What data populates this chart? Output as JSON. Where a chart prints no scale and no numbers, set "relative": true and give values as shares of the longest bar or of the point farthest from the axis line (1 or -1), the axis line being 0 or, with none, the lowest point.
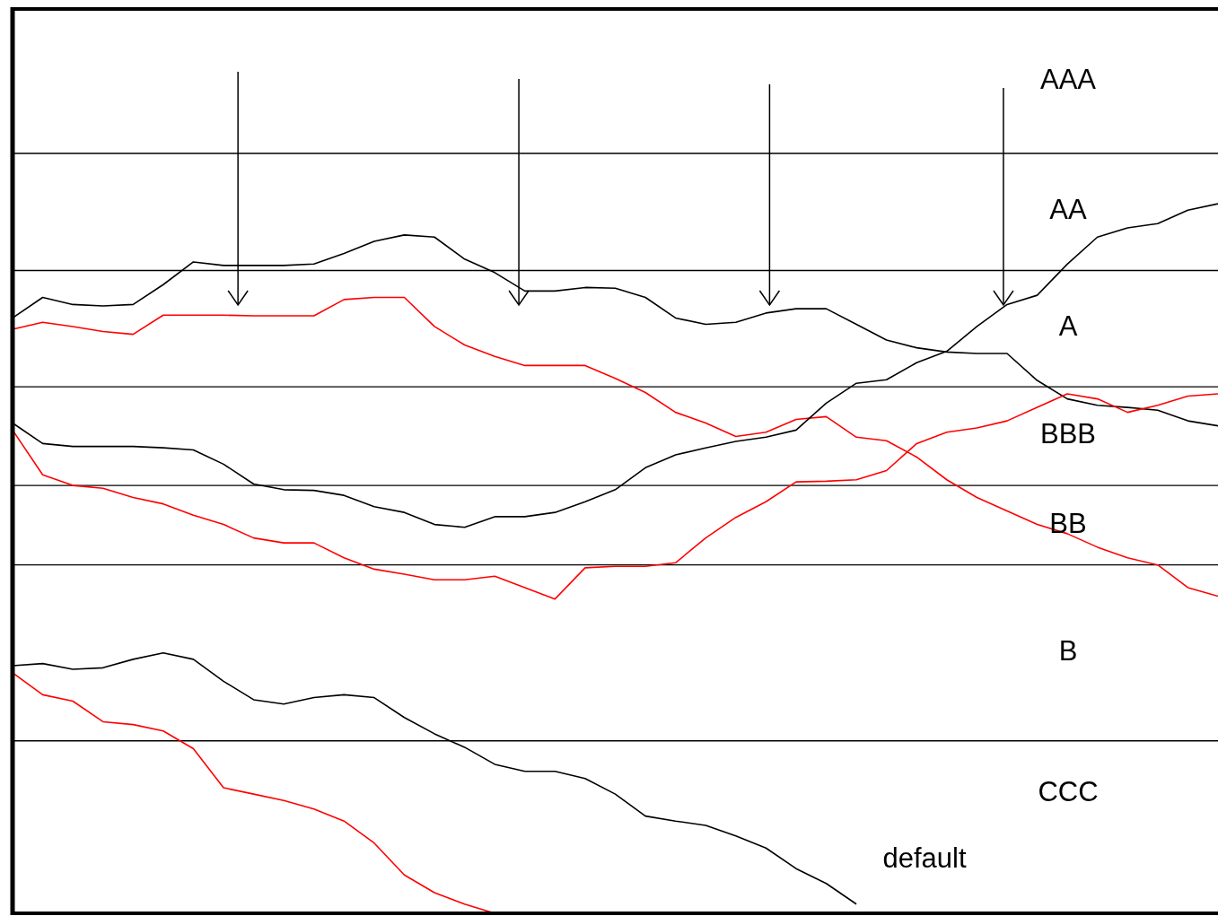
{
  "chart_data": {
    "type": "line",
    "relative": true,
    "marker": "none",
    "line_style": "solid",
    "categories": [
      null,
      null,
      null,
      null,
      null,
      null,
      null,
      null,
      null,
      null,
      null,
      null,
      null,
      null,
      null,
      null,
      null,
      null,
      null,
      null,
      null,
      null,
      null,
      null,
      null,
      null,
      null,
      null,
      null,
      null,
      null,
      null,
      null,
      null,
      null,
      null,
      null,
      null,
      null,
      null,
      null
    ],
    "series": [
      {
        "color": "#000000",
        "values": [
          0.839,
          0.868,
          0.858,
          0.856,
          0.858,
          0.886,
          0.918,
          0.913,
          0.913,
          0.913,
          0.915,
          0.93,
          0.947,
          0.956,
          0.953,
          0.922,
          0.903,
          0.877,
          0.877,
          0.882,
          0.881,
          0.868,
          0.839,
          0.83,
          0.833,
          0.846,
          0.852,
          0.852,
          0.83,
          0.808,
          0.797,
          0.791,
          0.789,
          0.789,
          0.751,
          0.725,
          0.716,
          0.713,
          0.709,
          0.694,
          0.687
        ]
      },
      {
        "color": "#ff0000",
        "values": [
          0.823,
          0.833,
          0.827,
          0.82,
          0.816,
          0.843,
          0.843,
          0.843,
          0.842,
          0.842,
          0.842,
          0.865,
          0.868,
          0.868,
          0.827,
          0.801,
          0.785,
          0.772,
          0.772,
          0.772,
          0.754,
          0.734,
          0.706,
          0.691,
          0.672,
          0.678,
          0.696,
          0.7,
          0.671,
          0.666,
          0.643,
          0.611,
          0.586,
          0.567,
          0.548,
          0.535,
          0.516,
          0.501,
          0.491,
          0.459,
          0.447
        ]
      },
      {
        "color": "#000000",
        "values": [
          0.691,
          0.662,
          0.658,
          0.658,
          0.658,
          0.656,
          0.653,
          0.633,
          0.605,
          0.597,
          0.596,
          0.589,
          0.573,
          0.565,
          0.548,
          0.544,
          0.559,
          0.559,
          0.565,
          0.58,
          0.597,
          0.628,
          0.646,
          0.656,
          0.665,
          0.671,
          0.681,
          0.719,
          0.747,
          0.752,
          0.776,
          0.792,
          0.827,
          0.858,
          0.871,
          0.915,
          0.953,
          0.966,
          0.972,
          0.991,
          1
        ]
      },
      {
        "color": "#ff0000",
        "values": [
          0.681,
          0.618,
          0.603,
          0.599,
          0.586,
          0.577,
          0.561,
          0.548,
          0.529,
          0.522,
          0.522,
          0.501,
          0.485,
          0.478,
          0.47,
          0.47,
          0.475,
          0.459,
          0.443,
          0.487,
          0.489,
          0.489,
          0.494,
          0.529,
          0.558,
          0.58,
          0.608,
          0.609,
          0.611,
          0.624,
          0.662,
          0.678,
          0.684,
          0.694,
          0.713,
          0.732,
          0.725,
          0.706,
          0.716,
          0.729,
          0.732
        ]
      },
      {
        "color": "#000000",
        "values": [
          0.349,
          0.352,
          0.344,
          0.346,
          0.358,
          0.367,
          0.358,
          0.327,
          0.301,
          0.295,
          0.304,
          0.308,
          0.304,
          0.276,
          0.253,
          0.234,
          0.21,
          0.2,
          0.2,
          0.19,
          0.168,
          0.137,
          0.13,
          0.124,
          0.109,
          0.092,
          0.063,
          0.042,
          0.013,
          null,
          null,
          null,
          null,
          null,
          null,
          null,
          null,
          null,
          null,
          null,
          null
        ]
      },
      {
        "color": "#ff0000",
        "values": [
          0.339,
          0.308,
          0.299,
          0.27,
          0.266,
          0.257,
          0.232,
          0.177,
          0.168,
          0.159,
          0.147,
          0.13,
          0.099,
          0.054,
          0.029,
          0.013,
          0,
          null,
          null,
          null,
          null,
          null,
          null,
          null,
          null,
          null,
          null,
          null,
          null,
          null,
          null,
          null,
          null,
          null,
          null,
          null,
          null,
          null,
          null,
          null,
          null
        ]
      }
    ],
    "ref_lines": [
      {
        "axis": "y",
        "value": 1.071,
        "color": "#000000"
      },
      {
        "axis": "y",
        "value": 0.906,
        "color": "#000000"
      },
      {
        "axis": "y",
        "value": 0.742,
        "color": "#000000"
      },
      {
        "axis": "y",
        "value": 0.603,
        "color": "#000000"
      },
      {
        "axis": "y",
        "value": 0.491,
        "color": "#000000"
      },
      {
        "axis": "y",
        "value": 0.243,
        "color": "#000000"
      }
    ],
    "annotations": [
      "AAA",
      "AA",
      "A",
      "BBB",
      "BB",
      "B",
      "CCC",
      "default"
    ]
  }
}
